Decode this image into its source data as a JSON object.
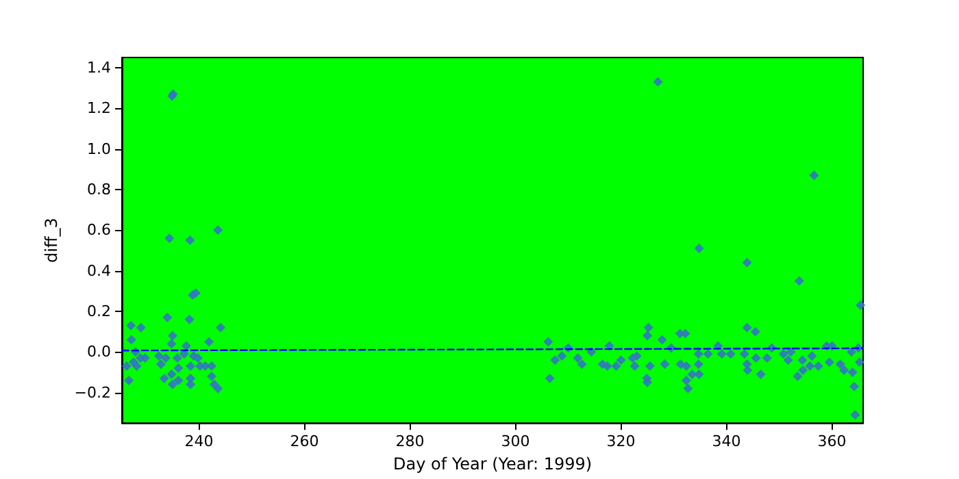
{
  "chart_data": {
    "type": "scatter",
    "xlabel": "Day of Year (Year: 1999)",
    "ylabel": "diff_3",
    "xlim": [
      225.4,
      365.9
    ],
    "ylim": [
      -0.35,
      1.45
    ],
    "xticks": [
      240,
      260,
      280,
      300,
      320,
      340,
      360
    ],
    "yticks": [
      {
        "value": -0.2,
        "label": "−0.2"
      },
      {
        "value": 0,
        "label": "0.0"
      },
      0.2,
      0.4,
      0.6,
      0.8,
      {
        "value": 1,
        "label": "1.0"
      },
      1.2,
      1.4
    ],
    "grid": false,
    "marker": "diamond",
    "series": [
      {
        "color": "#3574c4",
        "x": [
          234.9,
          235.1,
          234.4,
          238.3,
          243.6,
          238.8,
          239.4,
          227.1,
          229.0,
          234.0,
          238.2,
          244.1,
          227.2,
          235.0,
          241.9,
          234.8,
          237.6,
          226.3,
          226.7,
          233.4,
          234.8,
          236.1,
          235.0,
          236.1,
          238.4,
          238.4,
          238.4,
          240.2,
          241.2,
          242.4,
          242.4,
          242.9,
          243.6,
          228.2,
          228.9,
          232.4,
          232.8,
          233.7,
          235.9,
          237.2,
          239.8,
          239.0,
          228.0,
          229.8,
          227.6,
          334.8,
          343.9,
          353.8,
          365.4,
          327.0,
          356.6,
          325.2,
          325.0,
          331.2,
          332.2,
          327.8,
          343.9,
          345.5,
          306.2,
          306.5,
          317.8,
          324.9,
          325.0,
          332.7,
          332.4,
          333.5,
          334.8,
          346.5,
          353.5,
          364.2,
          364.4,
          363.9,
          362.3,
          361.6,
          357.4,
          359.5,
          359.0,
          360.0,
          365.2,
          307.5,
          308.8,
          310.0,
          311.8,
          312.6,
          314.4,
          316.5,
          317.4,
          319.1,
          320.0,
          322.2,
          323.0,
          322.6,
          325.5,
          328.3,
          329.5,
          331.3,
          332.4,
          334.7,
          334.7,
          336.5,
          338.4,
          339.1,
          340.8,
          343.4,
          343.9,
          344.0,
          345.6,
          347.7,
          348.6,
          350.8,
          351.7,
          352.2,
          354.4,
          354.5,
          355.8,
          356.2,
          365.0,
          363.7
        ],
        "values": [
          1.26,
          1.27,
          0.56,
          0.55,
          0.6,
          0.28,
          0.29,
          0.13,
          0.12,
          0.17,
          0.16,
          0.12,
          0.06,
          0.08,
          0.05,
          0.04,
          0.03,
          -0.07,
          -0.14,
          -0.13,
          -0.11,
          -0.08,
          -0.16,
          -0.14,
          -0.13,
          -0.16,
          -0.07,
          -0.07,
          -0.07,
          -0.07,
          -0.12,
          -0.16,
          -0.18,
          -0.07,
          -0.03,
          -0.02,
          -0.06,
          -0.03,
          -0.03,
          -0.01,
          -0.03,
          -0.02,
          0.0,
          -0.03,
          -0.05,
          0.51,
          0.44,
          0.35,
          0.23,
          1.33,
          0.87,
          0.12,
          0.08,
          0.09,
          0.09,
          0.06,
          0.12,
          0.1,
          0.05,
          -0.13,
          0.03,
          -0.13,
          -0.15,
          -0.18,
          -0.14,
          -0.11,
          -0.11,
          -0.11,
          -0.12,
          -0.17,
          -0.31,
          -0.1,
          -0.09,
          -0.06,
          -0.07,
          -0.05,
          0.03,
          0.03,
          -0.05,
          -0.04,
          -0.02,
          0.02,
          -0.03,
          -0.06,
          0.0,
          -0.06,
          -0.07,
          -0.07,
          -0.04,
          -0.03,
          -0.02,
          -0.07,
          -0.07,
          -0.06,
          0.02,
          -0.06,
          -0.07,
          -0.01,
          -0.06,
          -0.01,
          0.03,
          -0.01,
          -0.01,
          -0.01,
          -0.06,
          -0.09,
          -0.03,
          -0.03,
          0.02,
          -0.01,
          -0.04,
          0.0,
          -0.04,
          -0.09,
          -0.07,
          -0.02,
          0.02,
          0.0
        ]
      },
      {
        "type": "line",
        "color": "#0000ff",
        "line_style": "dashed",
        "marker": "none",
        "x": [
          225.4,
          365.9
        ],
        "values": [
          0.007,
          0.018
        ]
      }
    ]
  }
}
